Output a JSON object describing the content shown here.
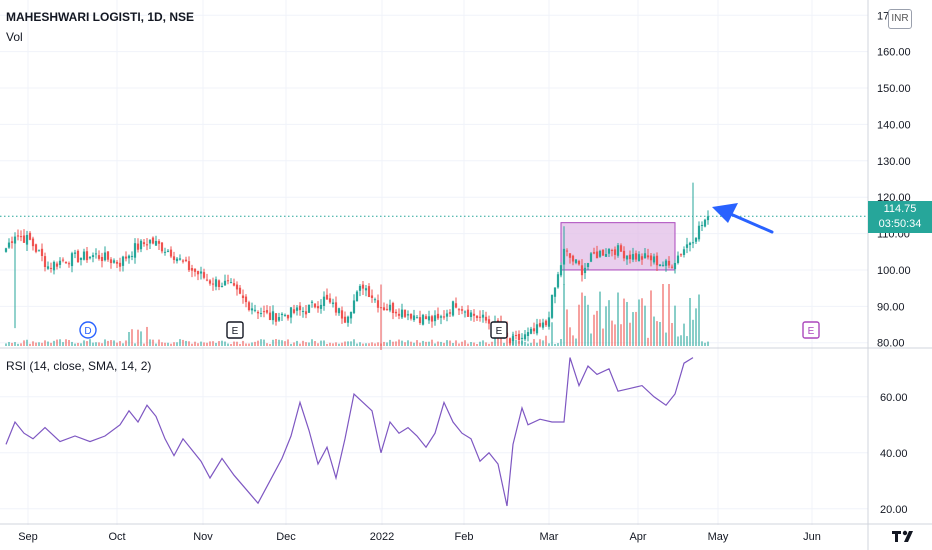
{
  "header": {
    "symbol_title": "MAHESHWARI LOGISTI, 1D, NSE",
    "volume_label": "Vol",
    "rsi_label": "RSI (14, close, SMA, 14, 2)"
  },
  "currency": "INR",
  "last_price": {
    "price": "114.75",
    "countdown": "03:50:34"
  },
  "event_markers": [
    {
      "label": "D",
      "kind": "dividend",
      "date": "Oct"
    },
    {
      "label": "E",
      "kind": "earnings",
      "date": "Nov"
    },
    {
      "label": "E",
      "kind": "earnings",
      "date": "Feb"
    },
    {
      "label": "E",
      "kind": "earnings",
      "date": "May"
    }
  ],
  "colors": {
    "up": "#26a69a",
    "down": "#ef5350",
    "rsi_line": "#7e57c2",
    "box_fill": "#e1bee7",
    "box_border": "#ab47bc",
    "arrow": "#2962ff"
  },
  "chart_data": [
    {
      "type": "candlestick",
      "title": "MAHESHWARI LOGISTI, 1D, NSE",
      "x_tick_labels": [
        "Sep",
        "Oct",
        "Nov",
        "Dec",
        "2022",
        "Feb",
        "Mar",
        "Apr",
        "May",
        "Jun"
      ],
      "y_tick_labels": [
        "80.00",
        "90.00",
        "100.00",
        "110.00",
        "120.00",
        "130.00",
        "140.00",
        "150.00",
        "160.00",
        "170.00"
      ],
      "ylim": [
        78,
        172
      ],
      "close_path": [
        [
          0,
          106
        ],
        [
          3,
          110
        ],
        [
          8,
          108
        ],
        [
          14,
          101
        ],
        [
          20,
          103
        ],
        [
          30,
          104
        ],
        [
          38,
          102
        ],
        [
          43,
          106
        ],
        [
          48,
          108
        ],
        [
          55,
          105
        ],
        [
          60,
          101
        ],
        [
          68,
          97
        ],
        [
          74,
          96
        ],
        [
          80,
          91
        ],
        [
          88,
          87
        ],
        [
          94,
          88
        ],
        [
          100,
          89
        ],
        [
          106,
          92
        ],
        [
          113,
          87
        ],
        [
          119,
          96
        ],
        [
          125,
          90
        ],
        [
          131,
          89
        ],
        [
          138,
          87
        ],
        [
          144,
          86
        ],
        [
          150,
          91
        ],
        [
          155,
          88
        ],
        [
          160,
          86
        ],
        [
          164,
          84
        ],
        [
          168,
          80
        ],
        [
          174,
          82
        ],
        [
          180,
          85
        ],
        [
          186,
          105
        ],
        [
          192,
          100
        ],
        [
          196,
          104
        ],
        [
          202,
          106
        ],
        [
          208,
          104
        ],
        [
          215,
          103
        ],
        [
          221,
          101
        ],
        [
          228,
          108
        ],
        [
          234,
          114.75
        ]
      ],
      "long_spikes": [
        {
          "x": 3,
          "low": 84,
          "high": 110
        },
        {
          "x": 125,
          "low": 78,
          "high": 96
        },
        {
          "x": 186,
          "low": 96,
          "high": 112
        },
        {
          "x": 229,
          "low": 106,
          "high": 124
        }
      ],
      "consolidation_box": {
        "x_start": 185,
        "x_end": 223,
        "y_low": 100,
        "y_high": 113
      },
      "last_price_line": 114.75,
      "annotation": "arrow pointing to the latest candle"
    },
    {
      "type": "bar",
      "name": "Vol",
      "description": "volume histogram, colored by candle direction",
      "high_volume_region": "from Mar to late Apr"
    },
    {
      "type": "line",
      "name": "RSI (14, close, SMA, 14, 2)",
      "y_tick_labels": [
        "20.00",
        "40.00",
        "60.00"
      ],
      "ylim": [
        16,
        76
      ],
      "points": [
        [
          0,
          43
        ],
        [
          3,
          51
        ],
        [
          6,
          47
        ],
        [
          9,
          45
        ],
        [
          13,
          49
        ],
        [
          18,
          44
        ],
        [
          23,
          46
        ],
        [
          28,
          44
        ],
        [
          33,
          46
        ],
        [
          38,
          50
        ],
        [
          41,
          55
        ],
        [
          44,
          51
        ],
        [
          47,
          57
        ],
        [
          50,
          53
        ],
        [
          53,
          45
        ],
        [
          56,
          39
        ],
        [
          59,
          45
        ],
        [
          62,
          41
        ],
        [
          65,
          37
        ],
        [
          68,
          31
        ],
        [
          72,
          38
        ],
        [
          76,
          32
        ],
        [
          80,
          27
        ],
        [
          84,
          22
        ],
        [
          88,
          30
        ],
        [
          92,
          38
        ],
        [
          95,
          46
        ],
        [
          98,
          58
        ],
        [
          101,
          48
        ],
        [
          104,
          36
        ],
        [
          107,
          42
        ],
        [
          110,
          31
        ],
        [
          113,
          45
        ],
        [
          116,
          61
        ],
        [
          119,
          58
        ],
        [
          122,
          55
        ],
        [
          125,
          40
        ],
        [
          128,
          51
        ],
        [
          131,
          47
        ],
        [
          134,
          49
        ],
        [
          137,
          46
        ],
        [
          140,
          42
        ],
        [
          143,
          47
        ],
        [
          146,
          58
        ],
        [
          149,
          51
        ],
        [
          152,
          47
        ],
        [
          155,
          45
        ],
        [
          158,
          37
        ],
        [
          161,
          40
        ],
        [
          164,
          36
        ],
        [
          167,
          21
        ],
        [
          169,
          43
        ],
        [
          172,
          56
        ],
        [
          174,
          50
        ],
        [
          178,
          52
        ],
        [
          182,
          51
        ],
        [
          186,
          51
        ],
        [
          188,
          74
        ],
        [
          191,
          64
        ],
        [
          194,
          71
        ],
        [
          197,
          68
        ],
        [
          201,
          70
        ],
        [
          204,
          62
        ],
        [
          208,
          63
        ],
        [
          212,
          64
        ],
        [
          216,
          60
        ],
        [
          220,
          57
        ],
        [
          223,
          61
        ],
        [
          226,
          72
        ],
        [
          229,
          74
        ]
      ]
    }
  ]
}
